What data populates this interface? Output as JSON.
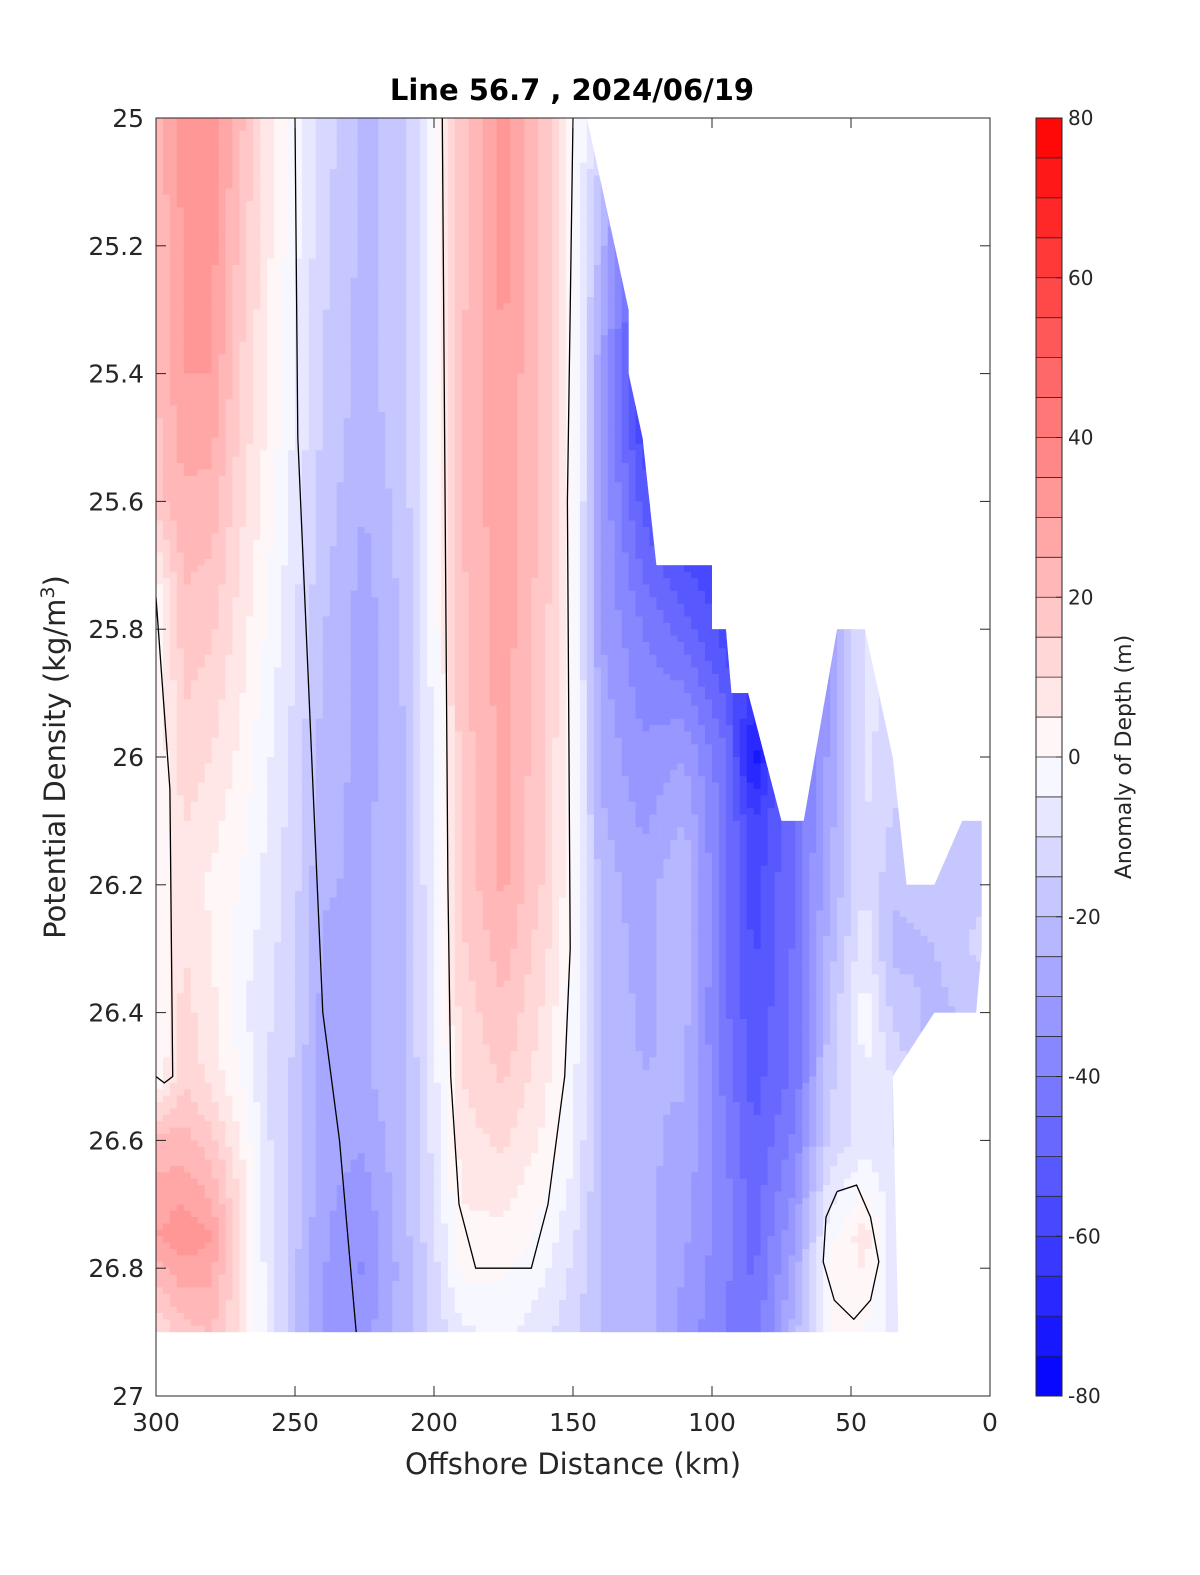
{
  "chart_data": {
    "type": "heatmap",
    "title": "Line 56.7 , 2024/06/19",
    "xlabel": "Offshore Distance (km)",
    "ylabel_main": "Potential Density (kg/m",
    "ylabel_sup": "3",
    "ylabel_end": ")",
    "colorbar_label": "Anomaly of Depth (m)",
    "xlim": [
      300,
      0
    ],
    "ylim": [
      25,
      27
    ],
    "x_ticks": [
      300,
      250,
      200,
      150,
      100,
      50,
      0
    ],
    "x_tick_labels": [
      "300",
      "250",
      "200",
      "150",
      "100",
      "50",
      "0"
    ],
    "y_ticks": [
      25,
      25.2,
      25.4,
      25.6,
      25.8,
      26,
      26.2,
      26.4,
      26.6,
      26.8,
      27
    ],
    "y_tick_labels": [
      "25",
      "25.2",
      "25.4",
      "25.6",
      "25.8",
      "26",
      "26.2",
      "26.4",
      "26.6",
      "26.8",
      "27"
    ],
    "colorbar_range": [
      -80,
      80
    ],
    "colorbar_ticks": [
      80,
      60,
      40,
      20,
      0,
      -20,
      -40,
      -60,
      -80
    ],
    "colorbar_tick_labels": [
      "80",
      "60",
      "40",
      "20",
      "0",
      "-20",
      "-40",
      "-60",
      "-80"
    ],
    "colormap": {
      "negative": "#0000ff",
      "zero": "#ffffff",
      "positive": "#ff0000"
    },
    "contour_level": 0,
    "data_extent": {
      "x_max": 300,
      "sigma_bottom": 26.9
    },
    "field_columns": [
      {
        "x": 300,
        "values": [
          [
            25.0,
            22
          ],
          [
            25.6,
            18
          ],
          [
            25.75,
            0
          ],
          [
            26.5,
            0
          ],
          [
            26.6,
            22
          ],
          [
            26.75,
            30
          ],
          [
            26.9,
            10
          ]
        ]
      },
      {
        "x": 290,
        "values": [
          [
            25.0,
            32
          ],
          [
            25.4,
            30
          ],
          [
            25.8,
            18
          ],
          [
            26.2,
            8
          ],
          [
            26.5,
            14
          ],
          [
            26.75,
            34
          ],
          [
            26.9,
            18
          ]
        ]
      },
      {
        "x": 280,
        "values": [
          [
            25.0,
            34
          ],
          [
            25.4,
            30
          ],
          [
            25.8,
            16
          ],
          [
            26.2,
            4
          ],
          [
            26.5,
            8
          ],
          [
            26.75,
            30
          ],
          [
            26.9,
            20
          ]
        ]
      },
      {
        "x": 270,
        "values": [
          [
            25.0,
            22
          ],
          [
            25.5,
            14
          ],
          [
            26.0,
            4
          ],
          [
            26.4,
            -4
          ],
          [
            26.7,
            10
          ],
          [
            26.9,
            10
          ]
        ]
      },
      {
        "x": 260,
        "values": [
          [
            25.0,
            8
          ],
          [
            25.5,
            4
          ],
          [
            26.0,
            -4
          ],
          [
            26.5,
            -10
          ],
          [
            26.9,
            -6
          ]
        ]
      },
      {
        "x": 250,
        "values": [
          [
            25.0,
            -2
          ],
          [
            25.5,
            -6
          ],
          [
            26.0,
            -12
          ],
          [
            26.5,
            -16
          ],
          [
            26.9,
            -20
          ]
        ]
      },
      {
        "x": 240,
        "values": [
          [
            25.0,
            -12
          ],
          [
            25.5,
            -16
          ],
          [
            26.0,
            -22
          ],
          [
            26.5,
            -28
          ],
          [
            26.9,
            -30
          ]
        ]
      },
      {
        "x": 225,
        "values": [
          [
            25.0,
            -22
          ],
          [
            25.4,
            -22
          ],
          [
            25.8,
            -28
          ],
          [
            26.2,
            -26
          ],
          [
            26.5,
            -26
          ],
          [
            26.8,
            -36
          ],
          [
            26.9,
            -32
          ]
        ]
      },
      {
        "x": 210,
        "values": [
          [
            25.0,
            -16
          ],
          [
            25.5,
            -16
          ],
          [
            26.0,
            -20
          ],
          [
            26.5,
            -20
          ],
          [
            26.9,
            -22
          ]
        ]
      },
      {
        "x": 200,
        "values": [
          [
            25.0,
            -2
          ],
          [
            25.6,
            -2
          ],
          [
            26.2,
            -4
          ],
          [
            26.6,
            -8
          ],
          [
            26.9,
            -14
          ]
        ]
      },
      {
        "x": 190,
        "values": [
          [
            25.0,
            18
          ],
          [
            25.6,
            20
          ],
          [
            26.2,
            16
          ],
          [
            26.6,
            8
          ],
          [
            26.8,
            2
          ],
          [
            26.9,
            -6
          ]
        ]
      },
      {
        "x": 175,
        "values": [
          [
            25.0,
            34
          ],
          [
            25.4,
            30
          ],
          [
            25.8,
            28
          ],
          [
            26.2,
            26
          ],
          [
            26.5,
            16
          ],
          [
            26.7,
            6
          ],
          [
            26.9,
            -4
          ]
        ]
      },
      {
        "x": 160,
        "values": [
          [
            25.0,
            18
          ],
          [
            25.6,
            18
          ],
          [
            26.2,
            14
          ],
          [
            26.6,
            4
          ],
          [
            26.9,
            -8
          ]
        ]
      },
      {
        "x": 150,
        "values": [
          [
            25.0,
            2
          ],
          [
            25.6,
            2
          ],
          [
            26.2,
            0
          ],
          [
            26.6,
            -4
          ],
          [
            26.9,
            -14
          ]
        ]
      },
      {
        "x": 140,
        "values": [
          [
            25.0,
            -14
          ],
          [
            25.4,
            -30
          ],
          [
            25.8,
            -30
          ],
          [
            26.2,
            -22
          ],
          [
            26.6,
            -20
          ],
          [
            26.9,
            -20
          ]
        ]
      },
      {
        "x": 125,
        "values": [
          [
            25.5,
            -58
          ],
          [
            25.8,
            -40
          ],
          [
            26.2,
            -28
          ],
          [
            26.6,
            -24
          ],
          [
            26.9,
            -22
          ]
        ]
      },
      {
        "x": 110,
        "values": [
          [
            25.7,
            -56
          ],
          [
            26.0,
            -30
          ],
          [
            26.2,
            -20
          ],
          [
            26.6,
            -26
          ],
          [
            26.9,
            -32
          ]
        ]
      },
      {
        "x": 95,
        "values": [
          [
            25.8,
            -58
          ],
          [
            26.0,
            -44
          ],
          [
            26.4,
            -44
          ],
          [
            26.7,
            -38
          ],
          [
            26.9,
            -40
          ]
        ]
      },
      {
        "x": 85,
        "values": [
          [
            25.9,
            -62
          ],
          [
            26.0,
            -74
          ],
          [
            26.1,
            -60
          ],
          [
            26.4,
            -54
          ],
          [
            26.9,
            -44
          ]
        ]
      },
      {
        "x": 70,
        "values": [
          [
            26.1,
            -44
          ],
          [
            26.5,
            -44
          ],
          [
            26.9,
            -22
          ]
        ]
      },
      {
        "x": 58,
        "values": [
          [
            25.8,
            -32
          ],
          [
            26.2,
            -26
          ],
          [
            26.6,
            -14
          ],
          [
            26.8,
            2
          ],
          [
            26.9,
            0
          ]
        ]
      },
      {
        "x": 45,
        "values": [
          [
            25.8,
            -8
          ],
          [
            26.2,
            -10
          ],
          [
            26.4,
            -2
          ],
          [
            26.6,
            -8
          ],
          [
            26.75,
            8
          ],
          [
            26.9,
            0
          ]
        ]
      },
      {
        "x": 35,
        "values": [
          [
            26.0,
            -12
          ],
          [
            26.3,
            -22
          ],
          [
            26.5,
            -10
          ],
          [
            26.9,
            -6
          ]
        ]
      },
      {
        "x": 20,
        "values": [
          [
            26.2,
            -18
          ],
          [
            26.4,
            -22
          ]
        ]
      },
      {
        "x": 5,
        "values": [
          [
            26.1,
            -18
          ],
          [
            26.3,
            -14
          ],
          [
            26.4,
            -18
          ]
        ]
      }
    ],
    "data_mask_polygon": [
      [
        300,
        25.0
      ],
      [
        145,
        25.0
      ],
      [
        140,
        25.1
      ],
      [
        130,
        25.3
      ],
      [
        130,
        25.4
      ],
      [
        125,
        25.5
      ],
      [
        120,
        25.7
      ],
      [
        100,
        25.7
      ],
      [
        100,
        25.8
      ],
      [
        95,
        25.8
      ],
      [
        93,
        25.9
      ],
      [
        87,
        25.9
      ],
      [
        75,
        26.1
      ],
      [
        67,
        26.1
      ],
      [
        55,
        25.8
      ],
      [
        45,
        25.8
      ],
      [
        35,
        26.0
      ],
      [
        30,
        26.2
      ],
      [
        20,
        26.2
      ],
      [
        10,
        26.1
      ],
      [
        3,
        26.1
      ],
      [
        3,
        26.3
      ],
      [
        5,
        26.4
      ],
      [
        20,
        26.4
      ],
      [
        35,
        26.5
      ],
      [
        33,
        26.9
      ],
      [
        300,
        26.9
      ]
    ],
    "zero_contours": [
      [
        [
          300,
          25.75
        ],
        [
          295,
          26.05
        ],
        [
          294,
          26.5
        ],
        [
          297,
          26.51
        ],
        [
          300,
          26.5
        ]
      ],
      [
        [
          250,
          25.0
        ],
        [
          249,
          25.5
        ],
        [
          245,
          25.9
        ],
        [
          242,
          26.2
        ],
        [
          240,
          26.4
        ],
        [
          234,
          26.6
        ],
        [
          230,
          26.8
        ],
        [
          228,
          26.9
        ]
      ],
      [
        [
          197,
          25.0
        ],
        [
          196,
          25.6
        ],
        [
          195,
          26.2
        ],
        [
          194,
          26.5
        ],
        [
          191,
          26.7
        ],
        [
          185,
          26.8
        ],
        [
          176,
          26.8
        ],
        [
          165,
          26.8
        ],
        [
          159,
          26.7
        ],
        [
          153,
          26.5
        ],
        [
          151,
          26.3
        ],
        [
          152,
          25.6
        ],
        [
          150,
          25.0
        ]
      ],
      [
        [
          55,
          26.68
        ],
        [
          48,
          26.67
        ],
        [
          43,
          26.72
        ],
        [
          40,
          26.79
        ],
        [
          43,
          26.85
        ],
        [
          49,
          26.88
        ],
        [
          56,
          26.85
        ],
        [
          60,
          26.79
        ],
        [
          59,
          26.72
        ],
        [
          55,
          26.68
        ]
      ]
    ]
  }
}
